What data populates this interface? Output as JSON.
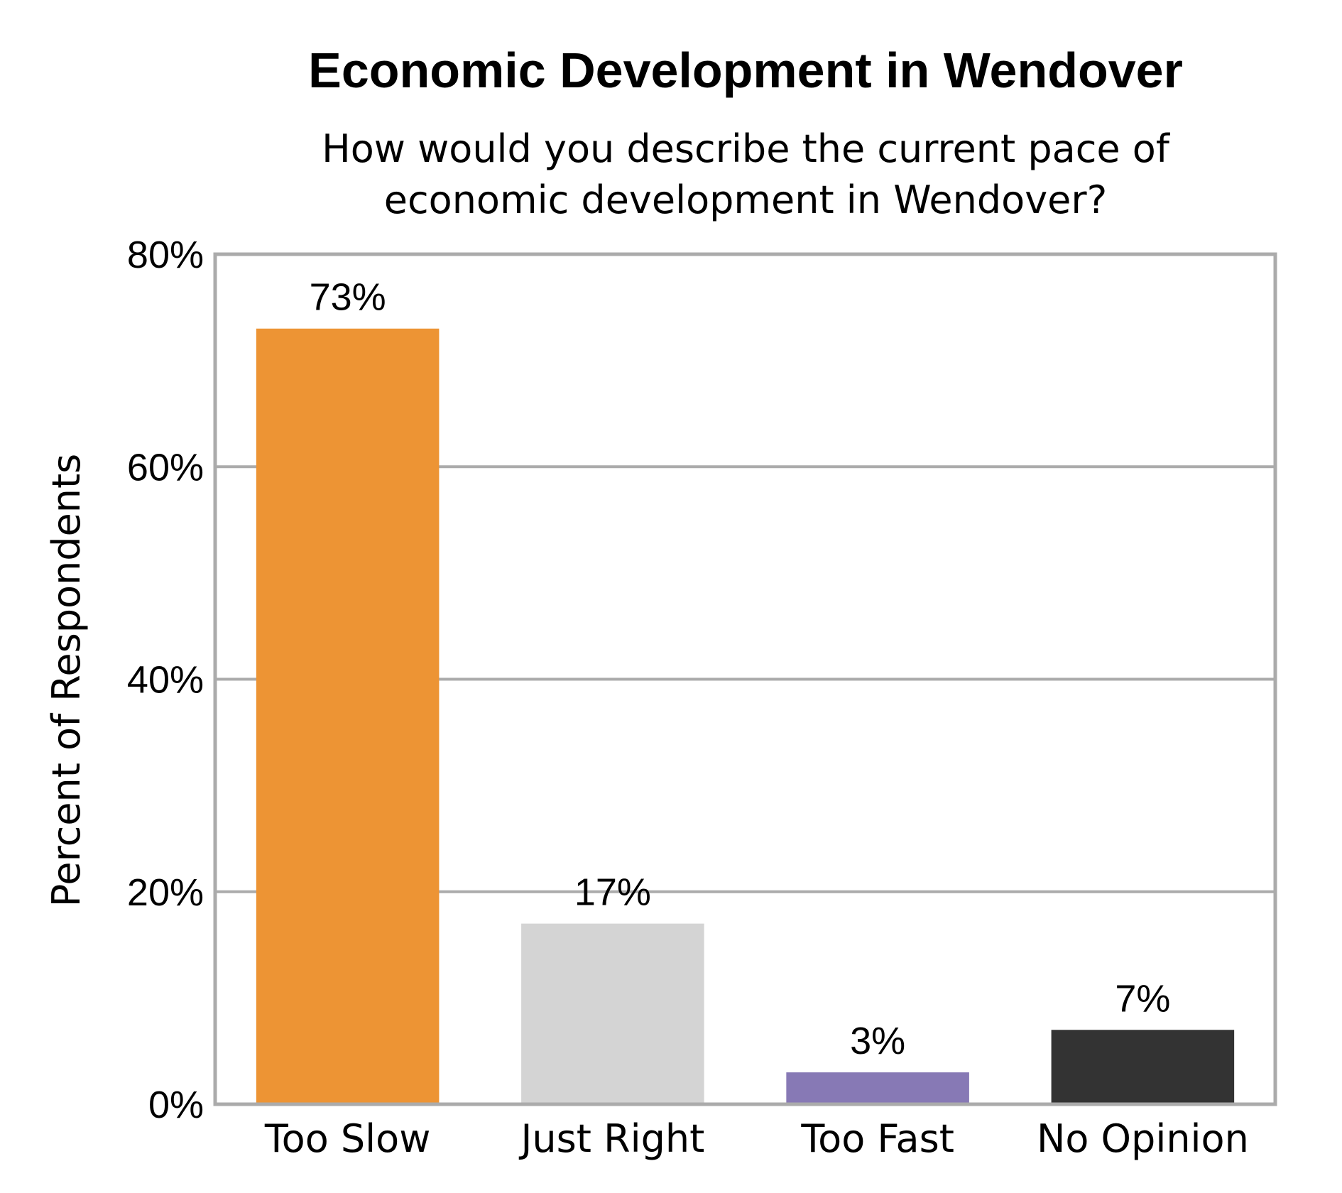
{
  "chart_data": {
    "type": "bar",
    "title": "Economic Development in Wendover",
    "subtitle_lines": [
      "How would you describe the current pace of",
      "economic development in Wendover?"
    ],
    "ylabel": "Percent of Respondents",
    "xlabel": "",
    "ylim": [
      0,
      80
    ],
    "yticks": [
      0,
      20,
      40,
      60,
      80
    ],
    "ytick_labels": [
      "0%",
      "20%",
      "40%",
      "60%",
      "80%"
    ],
    "grid": true,
    "categories": [
      "Too Slow",
      "Just Right",
      "Too Fast",
      "No Opinion"
    ],
    "values": [
      73,
      17,
      3,
      7
    ],
    "data_labels": [
      "73%",
      "17%",
      "3%",
      "7%"
    ],
    "colors": [
      "#ED9434",
      "#D4D4D4",
      "#8779B5",
      "#333333"
    ],
    "axis_color": "#ABABAB"
  }
}
